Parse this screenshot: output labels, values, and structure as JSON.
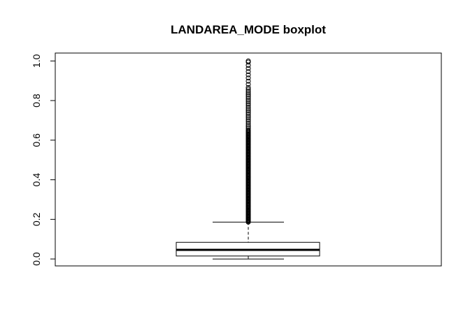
{
  "chart_data": {
    "type": "boxplot",
    "title": "LANDAREA_MODE boxplot",
    "xlabel": "",
    "ylabel": "",
    "ylim": [
      -0.035,
      1.04
    ],
    "y_ticks": [
      "0.0",
      "0.2",
      "0.4",
      "0.6",
      "0.8",
      "1.0"
    ],
    "y_tick_values": [
      0.0,
      0.2,
      0.4,
      0.6,
      0.8,
      1.0
    ],
    "grid": false,
    "box": {
      "min": 0.0,
      "q1": 0.015,
      "median": 0.046,
      "q3": 0.084,
      "whisker_high": 0.186,
      "outlier_range": [
        0.186,
        1.0
      ]
    },
    "colors": {
      "stroke": "#000000",
      "background": "#ffffff"
    }
  }
}
